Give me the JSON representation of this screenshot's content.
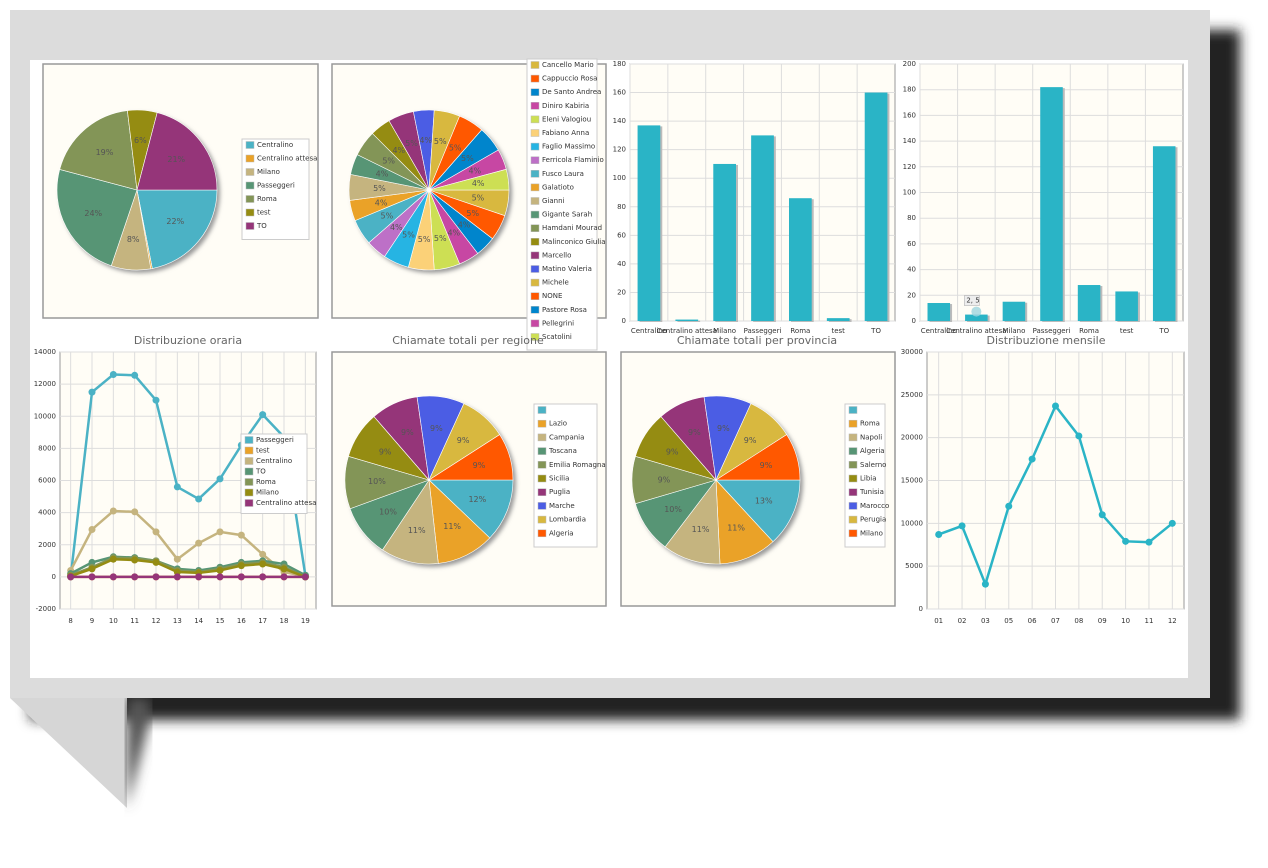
{
  "chart_data": [
    {
      "type": "pie",
      "categories": [
        "Centralino",
        "Centralino attesa",
        "Milano",
        "Passeggeri",
        "Roma",
        "test",
        "TO"
      ],
      "values": [
        22,
        0.3,
        8,
        24,
        19,
        6,
        21
      ],
      "value_labels": [
        "22%",
        null,
        "8%",
        "24%",
        "19%",
        "6%",
        "21%"
      ],
      "colors": [
        "#4bb2c5",
        "#EAA228",
        "#c5b47f",
        "#579575",
        "#839557",
        "#958c12",
        "#953579"
      ]
    },
    {
      "type": "pie",
      "categories": [
        "Cancello Mario",
        "Cappuccio Rosa",
        "De Santo Andrea",
        "Diniro Kabiria",
        "Eleni Valogiou",
        "Fabiano Anna",
        "Faglio Massimo",
        "Ferricola Flaminio",
        "Fusco Laura",
        "Galatioto",
        "Gianni",
        "Gigante Sarah",
        "Hamdani Mourad",
        "Malinconico Giulia",
        "Marcello",
        "Matino Valeria",
        "Michele",
        "NONE",
        "Pastore Rosa",
        "Pellegrini",
        "Scatolini"
      ],
      "values": [
        5,
        5,
        4,
        4,
        5,
        5,
        5,
        4,
        5,
        4,
        5,
        4,
        5,
        4,
        5,
        4,
        5,
        5,
        5,
        4,
        4
      ],
      "value_labels": [
        "5%",
        "5%",
        "4%",
        "4%",
        "5%",
        "5%",
        "5%",
        "4%",
        "5%",
        "4%",
        "5%",
        "4%",
        "5%",
        "4%",
        "5%",
        "4%",
        "5%",
        "5%",
        "5%",
        "4%",
        "4%"
      ],
      "colors": [
        "#d8b83f",
        "#ff5800",
        "#0085cc",
        "#c747a3",
        "#cddf54",
        "#FBD178",
        "#26B4E3",
        "#bd70c7",
        "#4bb2c5",
        "#EAA228",
        "#c5b47f",
        "#579575",
        "#839557",
        "#958c12",
        "#953579",
        "#4b5de4",
        "#d8b83f",
        "#ff5800",
        "#0085cc",
        "#c747a3",
        "#cddf54"
      ]
    },
    {
      "type": "bar",
      "categories": [
        "Centralino",
        "Centralino attesa",
        "Milano",
        "Passeggeri",
        "Roma",
        "test",
        "TO"
      ],
      "values": [
        137,
        1,
        110,
        130,
        86,
        2,
        160
      ],
      "color": "#2ab4c6",
      "ylim": [
        0,
        180
      ],
      "yticks": [
        0,
        20,
        40,
        60,
        80,
        100,
        120,
        140,
        160,
        180
      ],
      "grid": true
    },
    {
      "type": "bar",
      "categories": [
        "Centralino",
        "Centralino attesa",
        "Milano",
        "Passeggeri",
        "Roma",
        "test",
        "TO"
      ],
      "values": [
        14,
        5,
        15,
        182,
        28,
        23,
        136
      ],
      "color": "#2ab4c6",
      "ylim": [
        0,
        200
      ],
      "yticks": [
        0,
        20,
        40,
        60,
        80,
        100,
        120,
        140,
        160,
        180,
        200
      ],
      "grid": true,
      "tooltip": "2, 5"
    },
    {
      "type": "line",
      "title": "Distribuzione oraria",
      "categories": [
        "8",
        "9",
        "10",
        "11",
        "12",
        "13",
        "14",
        "15",
        "16",
        "17",
        "18",
        "19"
      ],
      "series": [
        {
          "name": "Passeggeri",
          "color": "#4bb2c5",
          "values": [
            0,
            11500,
            12600,
            12550,
            11000,
            5600,
            4850,
            6100,
            8200,
            10100,
            8700,
            100
          ]
        },
        {
          "name": "test",
          "color": "#EAA228",
          "values": [
            0,
            0,
            0,
            0,
            0,
            0,
            0,
            0,
            0,
            0,
            0,
            0
          ]
        },
        {
          "name": "Centralino",
          "color": "#c5b47f",
          "values": [
            400,
            2950,
            4100,
            4050,
            2800,
            1100,
            2100,
            2800,
            2600,
            1400,
            300,
            50
          ]
        },
        {
          "name": "TO",
          "color": "#579575",
          "values": [
            200,
            900,
            1250,
            1200,
            1000,
            500,
            400,
            600,
            900,
            1000,
            800,
            100
          ]
        },
        {
          "name": "Roma",
          "color": "#839557",
          "values": [
            100,
            600,
            1200,
            1150,
            1000,
            400,
            300,
            500,
            800,
            900,
            600,
            0
          ]
        },
        {
          "name": "Milano",
          "color": "#958c12",
          "values": [
            50,
            500,
            1100,
            1050,
            900,
            300,
            250,
            400,
            700,
            800,
            500,
            0
          ]
        },
        {
          "name": "Centralino attesa",
          "color": "#953579",
          "values": [
            0,
            0,
            0,
            0,
            0,
            0,
            0,
            0,
            0,
            0,
            0,
            0
          ]
        }
      ],
      "ylim": [
        -2000,
        14000
      ],
      "yticks": [
        -2000,
        0,
        2000,
        4000,
        6000,
        8000,
        10000,
        12000,
        14000
      ],
      "grid": true
    },
    {
      "type": "pie",
      "title": "Chiamate totali per regione",
      "categories": [
        null,
        "Lazio",
        "Campania",
        "Toscana",
        "Emilia Romagna",
        "Sicilia",
        "Puglia",
        "Marche",
        "Lombardia",
        "Algeria"
      ],
      "values": [
        12,
        11,
        11,
        10,
        10,
        9,
        9,
        9,
        9,
        9
      ],
      "value_labels": [
        "12%",
        "11%",
        "11%",
        "10%",
        "10%",
        "9%",
        "9%",
        "9%",
        "9%",
        "9%"
      ],
      "colors": [
        "#4bb2c5",
        "#EAA228",
        "#c5b47f",
        "#579575",
        "#839557",
        "#958c12",
        "#953579",
        "#4b5de4",
        "#d8b83f",
        "#ff5800"
      ]
    },
    {
      "type": "pie",
      "title": "Chiamate totali per provincia",
      "categories": [
        null,
        "Roma",
        "Napoli",
        "Algeria",
        "Salerno",
        "Libia",
        "Tunisia",
        "Marocco",
        "Perugia",
        "Milano"
      ],
      "values": [
        13,
        11,
        11,
        10,
        9,
        9,
        9,
        9,
        9,
        9
      ],
      "value_labels": [
        "13%",
        "11%",
        "11%",
        "10%",
        "9%",
        "9%",
        "9%",
        "9%",
        "9%",
        "9%"
      ],
      "colors": [
        "#4bb2c5",
        "#EAA228",
        "#c5b47f",
        "#579575",
        "#839557",
        "#958c12",
        "#953579",
        "#4b5de4",
        "#d8b83f",
        "#ff5800"
      ]
    },
    {
      "type": "line",
      "title": "Distribuzione mensile",
      "categories": [
        "01",
        "02",
        "03",
        "05",
        "06",
        "07",
        "08",
        "09",
        "10",
        "11",
        "12"
      ],
      "series": [
        {
          "color": "#2ab4c6",
          "values": [
            8700,
            9700,
            2900,
            12000,
            17500,
            23700,
            20200,
            11000,
            7900,
            7800,
            10000
          ]
        }
      ],
      "ylim": [
        0,
        30000
      ],
      "yticks": [
        0,
        5000,
        10000,
        15000,
        20000,
        25000,
        30000
      ],
      "grid": true
    }
  ]
}
